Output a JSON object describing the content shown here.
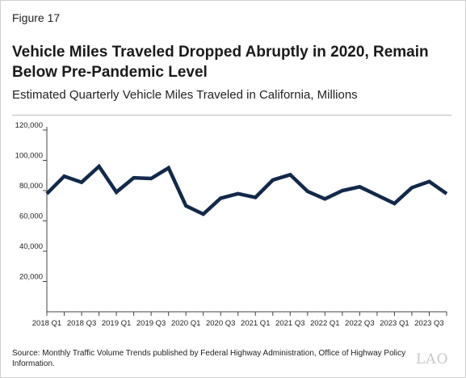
{
  "figure_label": "Figure 17",
  "title": "Vehicle Miles Traveled Dropped Abruptly in 2020, Remain Below Pre-Pandemic Level",
  "subtitle": "Estimated Quarterly Vehicle Miles Traveled in California, Millions",
  "source": "Source: Monthly Traffic Volume Trends published by Federal Highway Administration, Office of Highway Policy Information.",
  "logo_text": "LAO",
  "chart_data": {
    "type": "line",
    "title": "",
    "xlabel": "",
    "ylabel": "",
    "ylim": [
      0,
      120000
    ],
    "yticks": [
      20000,
      40000,
      60000,
      80000,
      100000,
      120000
    ],
    "ytick_labels": [
      "20,000",
      "40,000",
      "60,000",
      "80,000",
      "100,000",
      "120,000"
    ],
    "grid": false,
    "line_color": "#13294b",
    "categories": [
      "2018 Q1",
      "2018 Q2",
      "2018 Q3",
      "2018 Q4",
      "2019 Q1",
      "2019 Q2",
      "2019 Q3",
      "2019 Q4",
      "2020 Q1",
      "2020 Q2",
      "2020 Q3",
      "2020 Q4",
      "2021 Q1",
      "2021 Q2",
      "2021 Q3",
      "2021 Q4",
      "2022 Q1",
      "2022 Q2",
      "2022 Q3",
      "2022 Q4",
      "2023 Q1",
      "2023 Q2",
      "2023 Q3",
      "2023 Q4"
    ],
    "x_tick_labels": [
      "2018 Q1",
      "",
      "2018 Q3",
      "",
      "2019 Q1",
      "",
      "2019 Q3",
      "",
      "2020 Q1",
      "",
      "2020 Q3",
      "",
      "2021 Q1",
      "",
      "2021 Q3",
      "",
      "2022 Q1",
      "",
      "2022 Q3",
      "",
      "2023 Q1",
      "",
      "2023 Q3",
      ""
    ],
    "values": [
      78000,
      89500,
      85500,
      96000,
      79000,
      88500,
      88000,
      95000,
      70000,
      64500,
      75000,
      78000,
      75500,
      87000,
      90500,
      79500,
      74500,
      80000,
      82500,
      77000,
      71500,
      82000,
      86000,
      78000
    ]
  }
}
